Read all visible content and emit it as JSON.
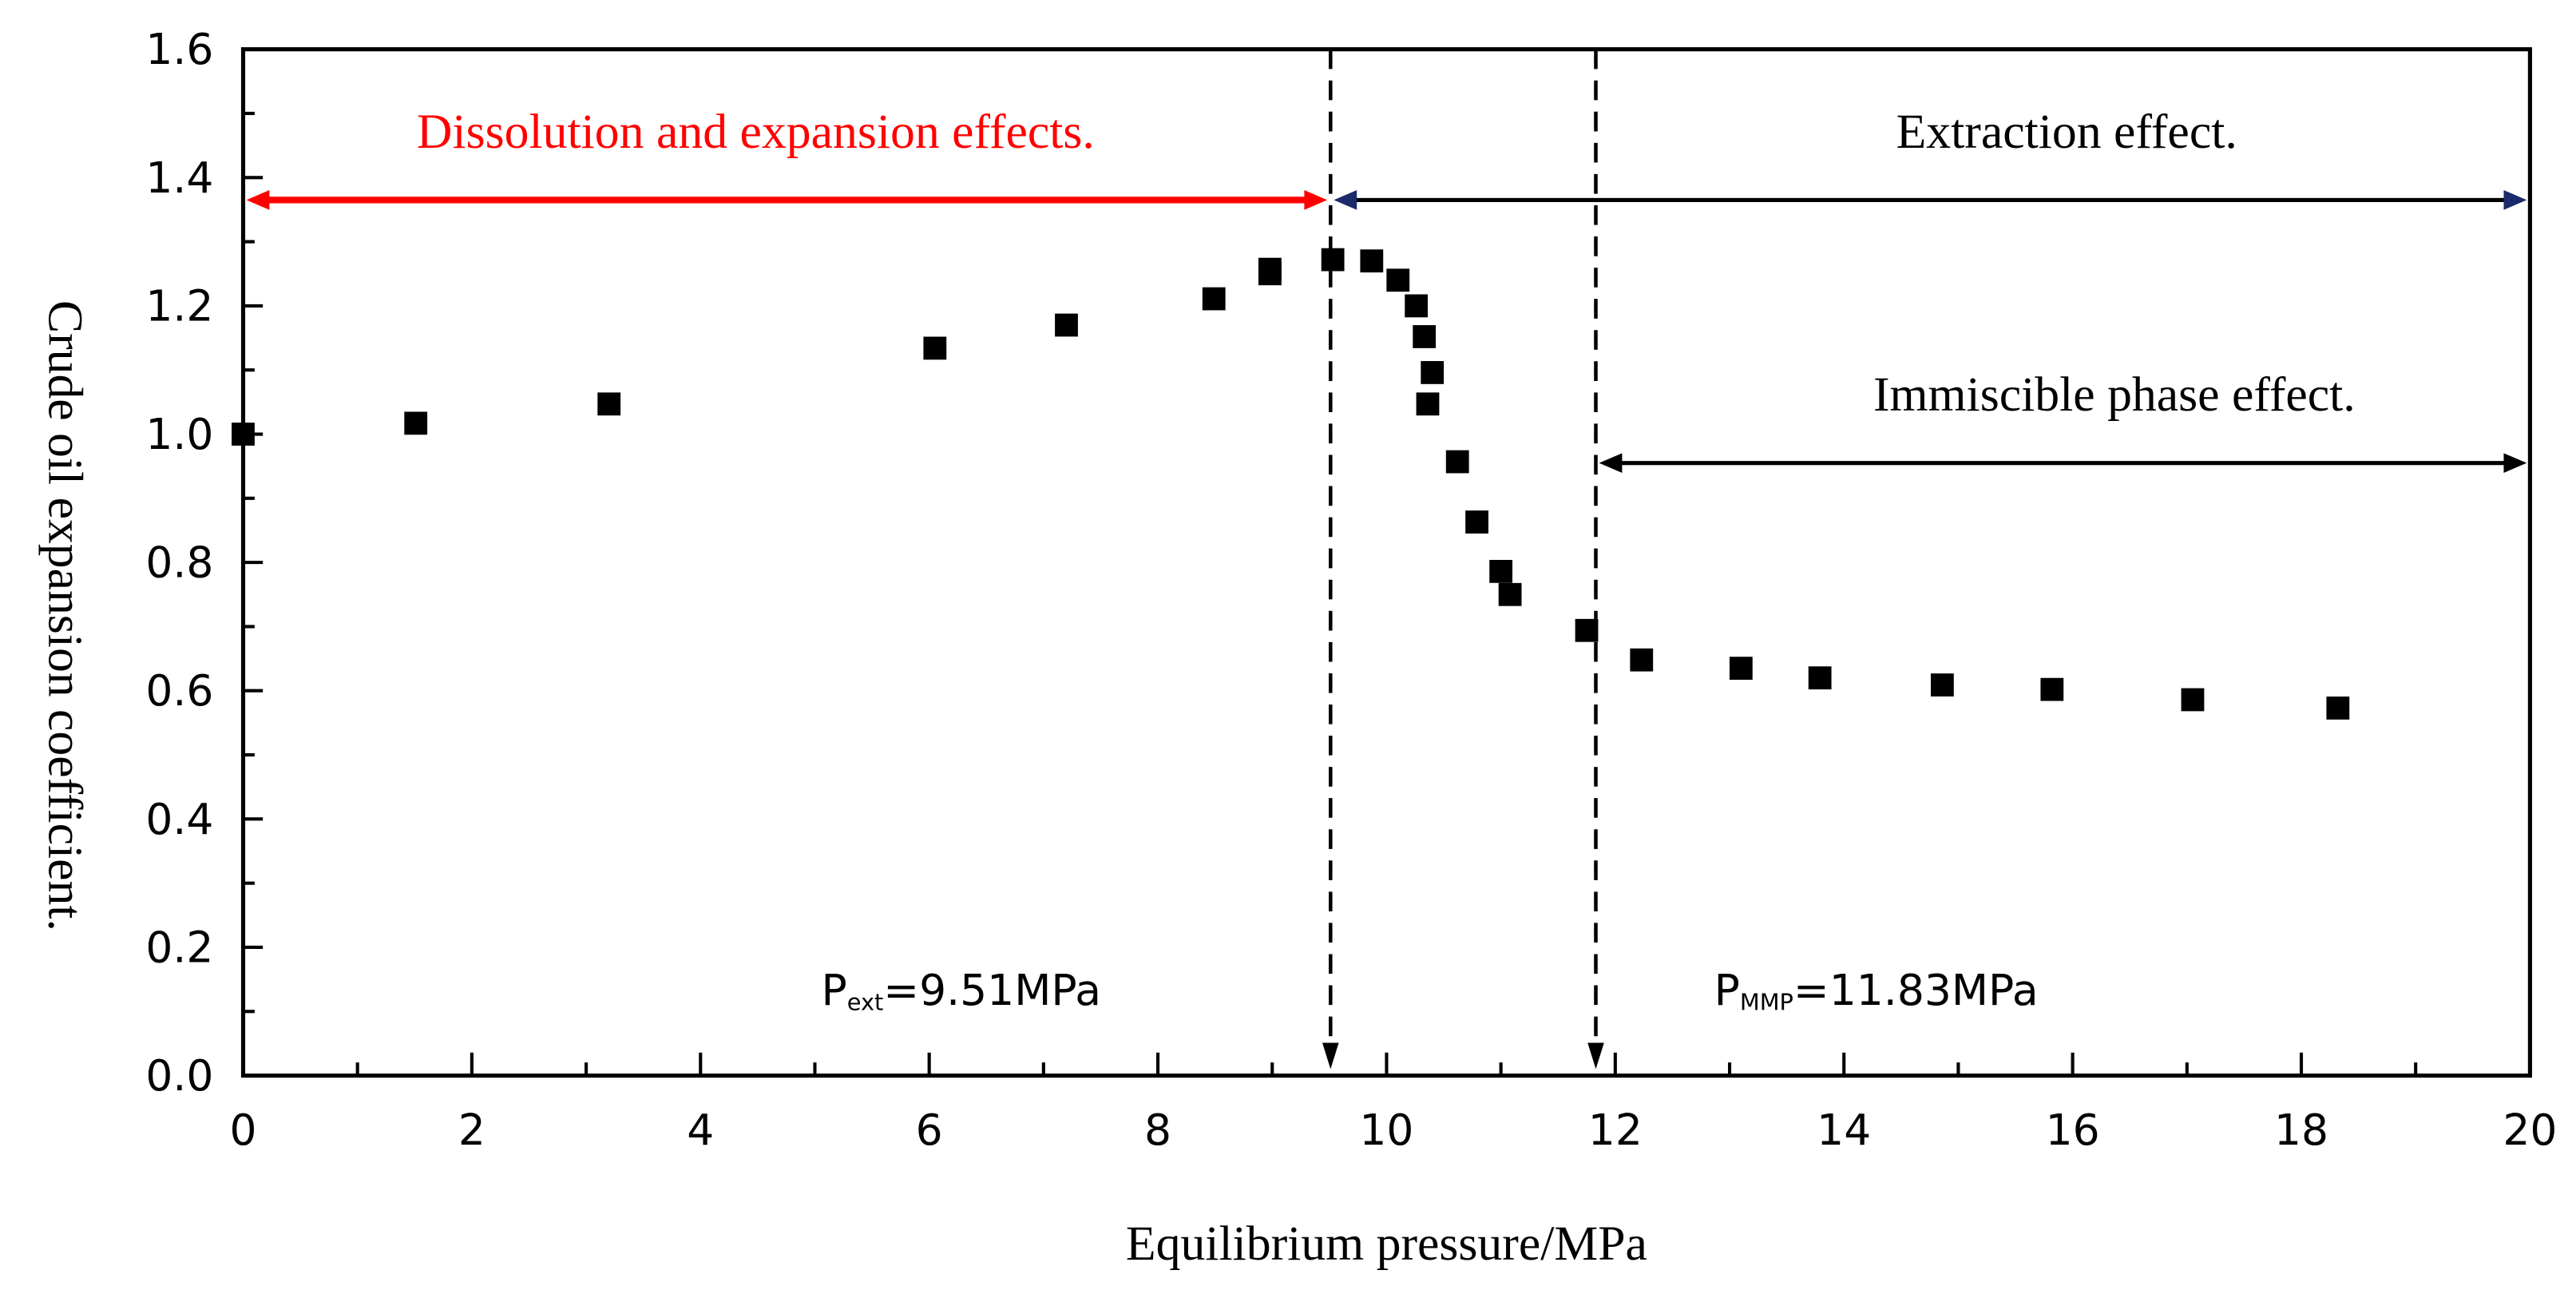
{
  "chart_data": {
    "type": "scatter",
    "xlabel": "Equilibrium pressure/MPa",
    "ylabel": "Crude oil expansion coefficient.",
    "xlim": [
      0,
      20
    ],
    "ylim": [
      0,
      1.6
    ],
    "xticks": [
      "0",
      "2",
      "4",
      "6",
      "8",
      "10",
      "12",
      "14",
      "16",
      "18",
      "20"
    ],
    "yticks": [
      "0.0",
      "0.2",
      "0.4",
      "0.6",
      "0.8",
      "1.0",
      "1.2",
      "1.4",
      "1.6"
    ],
    "grid": false,
    "series": [
      {
        "name": "Crude oil expansion coefficient",
        "marker": "square",
        "color": "#000000",
        "x": [
          0,
          1.51,
          3.2,
          6.05,
          7.2,
          8.49,
          8.98,
          8.98,
          9.53,
          9.87,
          10.1,
          10.26,
          10.33,
          10.4,
          10.36,
          10.62,
          10.79,
          11.0,
          11.08,
          11.75,
          12.23,
          13.1,
          13.79,
          14.86,
          15.82,
          17.05,
          18.32
        ],
        "y": [
          1.0,
          1.017,
          1.047,
          1.134,
          1.17,
          1.211,
          1.257,
          1.25,
          1.272,
          1.27,
          1.24,
          1.2,
          1.152,
          1.096,
          1.047,
          0.957,
          0.863,
          0.786,
          0.75,
          0.694,
          0.648,
          0.635,
          0.62,
          0.609,
          0.602,
          0.586,
          0.573
        ]
      }
    ],
    "vlines": [
      {
        "x": 9.51,
        "label_main": "P",
        "label_sub": "ext",
        "label_value": "=9.51MPa"
      },
      {
        "x": 11.83,
        "label_main": "P",
        "label_sub": "MMP",
        "label_value": "=11.83MPa"
      }
    ],
    "annotations": [
      {
        "text": "Dissolution and expansion effects.",
        "x_from": 0,
        "x_to": 9.51,
        "y": 1.365,
        "color": "#ff0000"
      },
      {
        "text": "Extraction effect.",
        "x_from": 9.51,
        "x_to": 20,
        "y": 1.365,
        "color": "#000000"
      },
      {
        "text": "Immiscible phase effect.",
        "x_from": 11.83,
        "x_to": 20,
        "y": 0.955,
        "color": "#000000"
      }
    ]
  }
}
